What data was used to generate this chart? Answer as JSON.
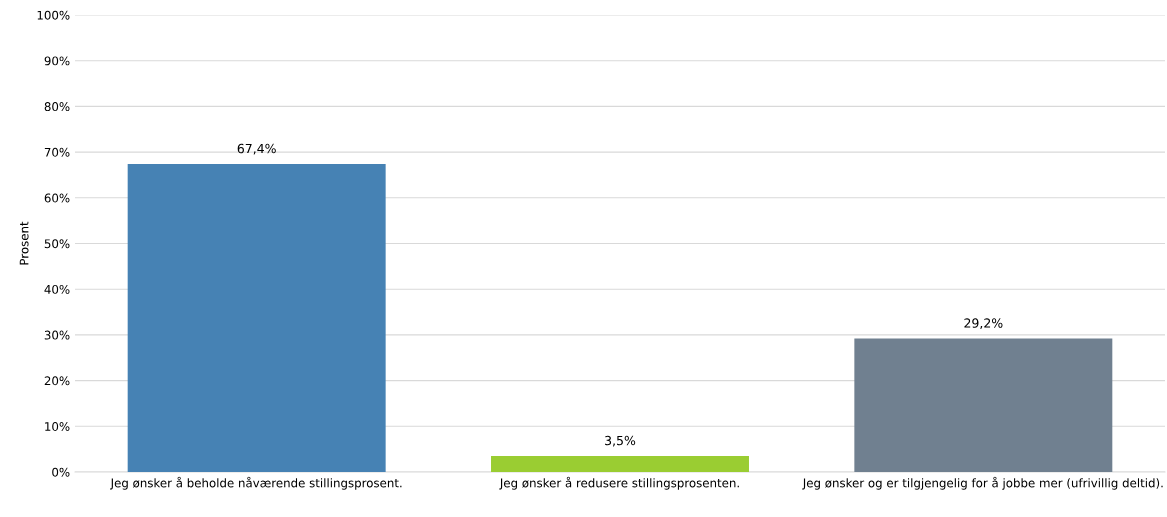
{
  "chart_data": {
    "type": "bar",
    "ylabel": "Prosent",
    "categories": [
      "Jeg ønsker å beholde nåværende stillingsprosent.",
      "Jeg ønsker å redusere stillingsprosenten.",
      "Jeg ønsker og er tilgjengelig for å jobbe mer (ufrivillig deltid)."
    ],
    "values": [
      67.4,
      3.5,
      29.2
    ],
    "colors": [
      "#4682b4",
      "#9acd32",
      "#708090"
    ],
    "value_labels": [
      "67,4%",
      "3,5%",
      "29,2%"
    ],
    "ylim": [
      0,
      100
    ],
    "yticks": [
      {
        "value": 0,
        "label": "0%"
      },
      {
        "value": 10,
        "label": "10%"
      },
      {
        "value": 20,
        "label": "20%"
      },
      {
        "value": 30,
        "label": "30%"
      },
      {
        "value": 40,
        "label": "40%"
      },
      {
        "value": 50,
        "label": "50%"
      },
      {
        "value": 60,
        "label": "60%"
      },
      {
        "value": 70,
        "label": "70%"
      },
      {
        "value": 80,
        "label": "80%"
      },
      {
        "value": 90,
        "label": "90%"
      },
      {
        "value": 100,
        "label": "100%"
      }
    ],
    "grid": "y",
    "legend": false
  }
}
